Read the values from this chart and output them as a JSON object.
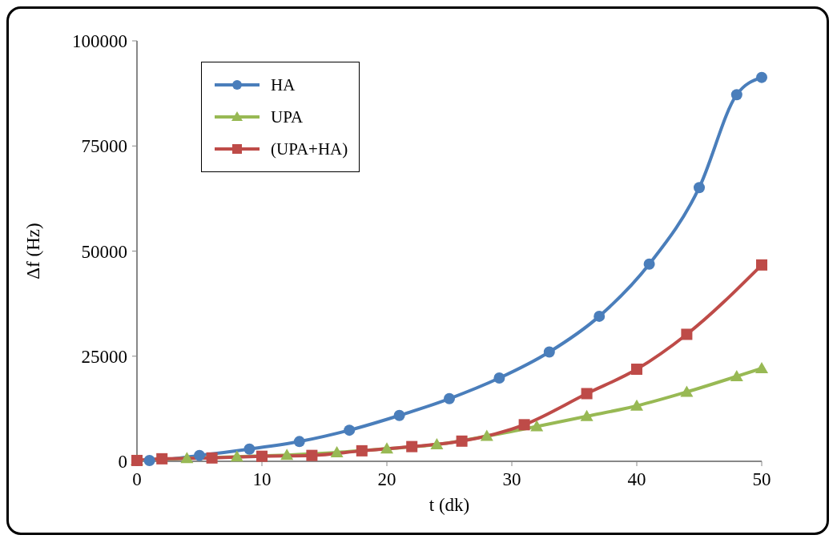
{
  "chart_data": {
    "type": "line",
    "xlabel": "t (dk)",
    "ylabel": "Δf (Hz)",
    "xlim": [
      0,
      50
    ],
    "xticks": [
      0,
      10,
      20,
      30,
      40,
      50
    ],
    "ylim": [
      0,
      100000
    ],
    "yticks": [
      0,
      25000,
      50000,
      75000,
      100000
    ],
    "legend": "top left",
    "line_style": "solid",
    "series": [
      {
        "name": "HA",
        "color": "#4a7ebb",
        "marker": "circle",
        "x": [
          0,
          1,
          5,
          9,
          13,
          17,
          21,
          25,
          29,
          33,
          37,
          41,
          45,
          48,
          50
        ],
        "values": [
          200,
          200,
          1400,
          2900,
          4700,
          7400,
          10900,
          14900,
          19800,
          26000,
          34500,
          46900,
          65100,
          87200,
          91300
        ]
      },
      {
        "name": "UPA",
        "color": "#98b954",
        "marker": "triangle",
        "x": [
          0,
          4,
          8,
          12,
          16,
          20,
          24,
          28,
          32,
          36,
          40,
          44,
          48,
          50
        ],
        "values": [
          200,
          700,
          1100,
          1500,
          2100,
          3000,
          4000,
          6000,
          8300,
          10700,
          13200,
          16500,
          20200,
          22100
        ]
      },
      {
        "name": "(UPA+HA)",
        "color": "#be4b48",
        "marker": "square",
        "x": [
          0,
          2,
          6,
          10,
          14,
          18,
          22,
          26,
          31,
          36,
          40,
          44,
          50
        ],
        "values": [
          200,
          600,
          800,
          1200,
          1400,
          2500,
          3500,
          4800,
          8700,
          16100,
          21900,
          30200,
          46700
        ]
      }
    ]
  }
}
